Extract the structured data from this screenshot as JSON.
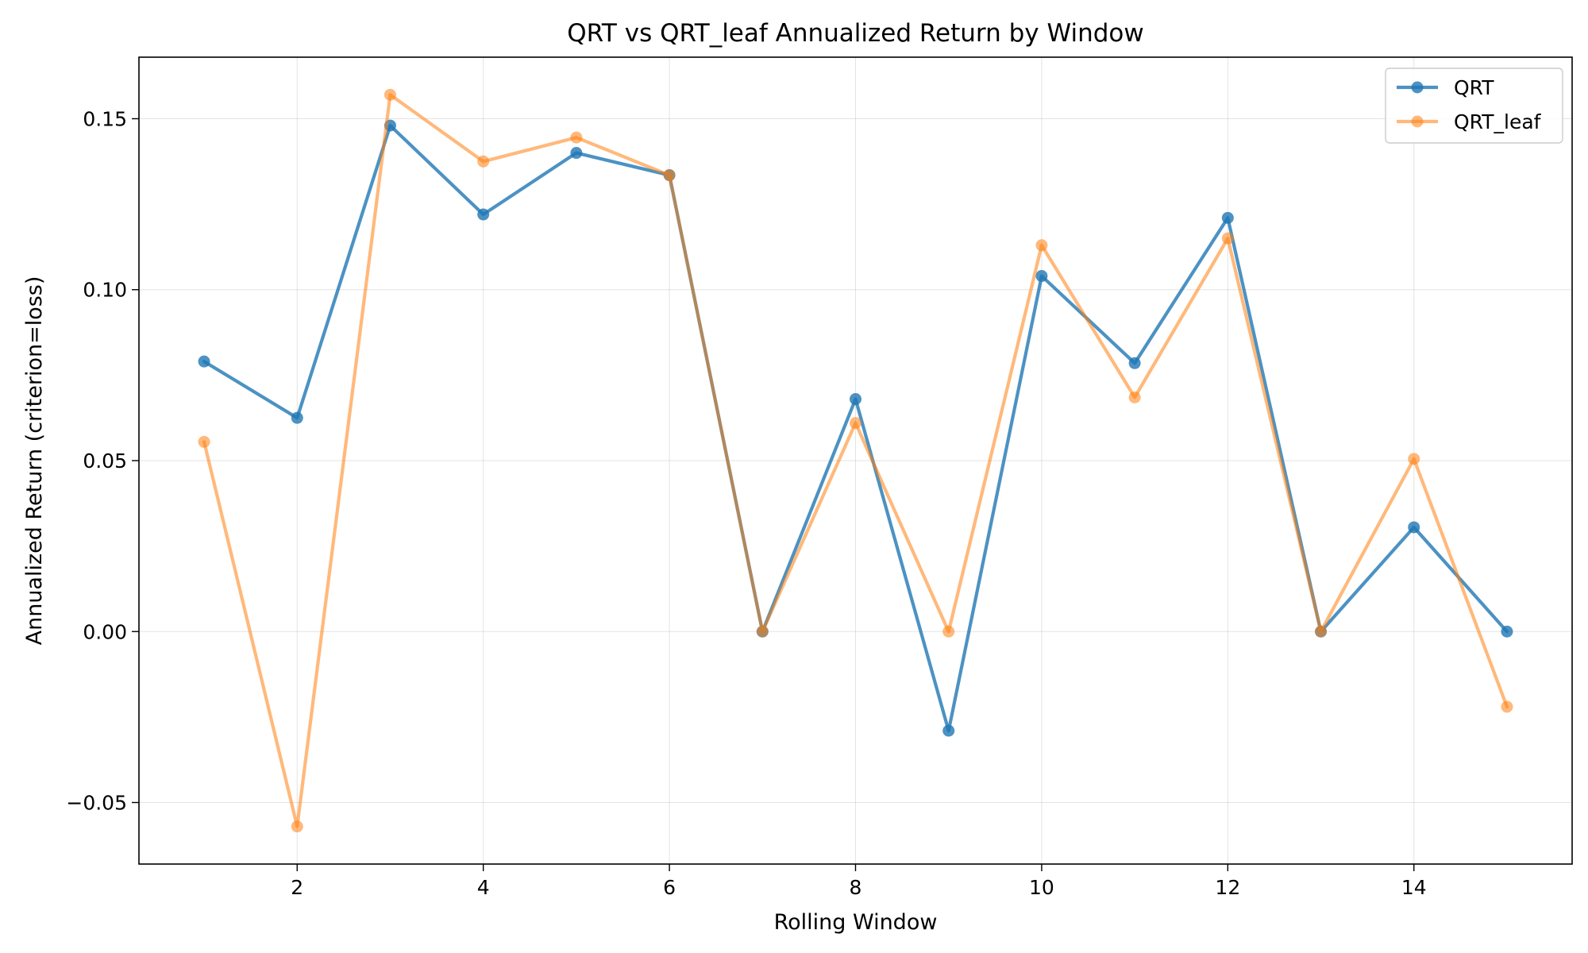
{
  "chart_data": {
    "type": "line",
    "title": "QRT vs QRT_leaf Annualized Return by Window",
    "xlabel": "Rolling Window",
    "ylabel": "Annualized Return (criterion=loss)",
    "xlim": [
      0.3,
      15.7
    ],
    "ylim": [
      -0.068,
      0.168
    ],
    "xticks": [
      2,
      4,
      6,
      8,
      10,
      12,
      14
    ],
    "xtick_labels": [
      "2",
      "4",
      "6",
      "8",
      "10",
      "12",
      "14"
    ],
    "yticks": [
      -0.05,
      0.0,
      0.05,
      0.1,
      0.15
    ],
    "ytick_labels": [
      "−0.05",
      "0.00",
      "0.05",
      "0.10",
      "0.15"
    ],
    "grid": true,
    "legend_position": "top-right",
    "x": [
      1,
      2,
      3,
      4,
      5,
      6,
      7,
      8,
      9,
      10,
      11,
      12,
      13,
      14,
      15
    ],
    "series": [
      {
        "name": "QRT",
        "color": "#1f77b4",
        "values": [
          0.079,
          0.0625,
          0.148,
          0.122,
          0.14,
          0.1335,
          0.0,
          0.068,
          -0.029,
          0.104,
          0.0785,
          0.121,
          0.0,
          0.0305,
          0.0
        ]
      },
      {
        "name": "QRT_leaf",
        "color": "#ff7f0e",
        "values": [
          0.0555,
          -0.057,
          0.157,
          0.1375,
          0.1445,
          0.1335,
          0.0,
          0.061,
          0.0,
          0.113,
          0.0685,
          0.115,
          0.0,
          0.0505,
          -0.022
        ]
      }
    ]
  }
}
